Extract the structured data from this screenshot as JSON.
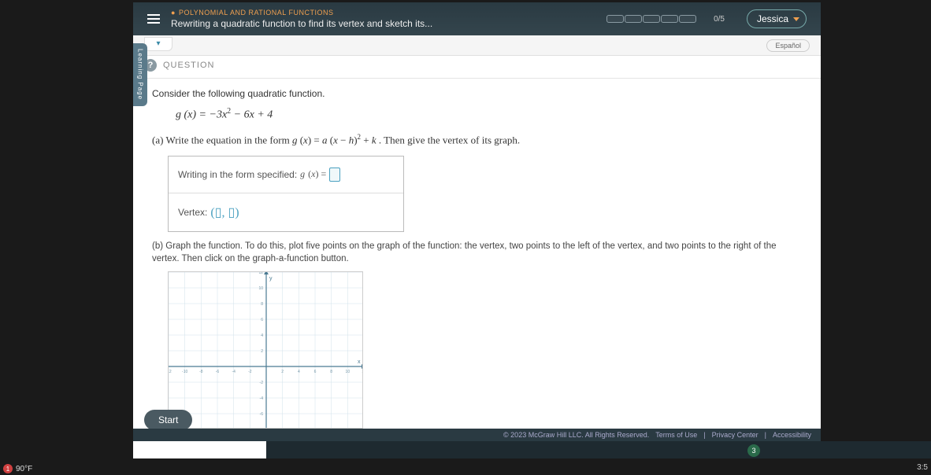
{
  "header": {
    "category": "POLYNOMIAL AND RATIONAL FUNCTIONS",
    "title": "Rewriting a quadratic function to find its vertex and sketch its...",
    "progress": "0/5",
    "user": "Jessica"
  },
  "subbar": {
    "language": "Español"
  },
  "question": {
    "label": "QUESTION",
    "prompt": "Consider the following quadratic function.",
    "equation_html": "g (x) = −3x² − 6x + 4",
    "part_a_prefix": "(a) Write the equation in the form ",
    "part_a_formula": "g (x) = a (x − h)² + k",
    "part_a_suffix": ". Then give the vertex of its graph.",
    "input_label": "Writing in the form specified: ",
    "input_formula": "g (x) =",
    "vertex_label": "Vertex:",
    "part_b": "(b) Graph the function. To do this, plot five points on the graph of the function: the vertex, two points to the left of the vertex, and two points to the right of the vertex. Then click on the graph-a-function button."
  },
  "graph": {
    "x_min": -12,
    "x_max": 12,
    "y_min": -8,
    "y_max": 12,
    "tick_step": 2,
    "grid_color": "#d0e0ea",
    "axis_color": "#4a7a92",
    "bg": "#ffffff"
  },
  "buttons": {
    "start": "Start"
  },
  "footer": {
    "copyright": "© 2023 McGraw Hill LLC. All Rights Reserved.",
    "terms": "Terms of Use",
    "privacy": "Privacy Center",
    "access": "Accessibility"
  },
  "system": {
    "temp": "90°F",
    "notif": "1",
    "tray_count": "3",
    "clock": "3:5"
  },
  "tools": [
    "⊞",
    "▶",
    "⊡",
    "💾",
    "✉",
    "🖶"
  ]
}
